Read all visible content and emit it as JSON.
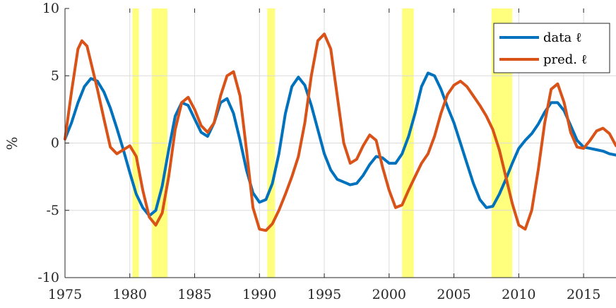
{
  "chart_data": {
    "type": "line",
    "title": "",
    "xlabel": "",
    "ylabel": "%",
    "xlim": [
      1975,
      2017.5
    ],
    "ylim": [
      -10,
      10
    ],
    "grid": true,
    "legend_position": "top-right",
    "x_ticks": [
      1975,
      1980,
      1985,
      1990,
      1995,
      2000,
      2005,
      2010,
      2015
    ],
    "x_tick_labels": [
      "1975",
      "1980",
      "1985",
      "1990",
      "1995",
      "2000",
      "2005",
      "2010",
      "2015"
    ],
    "y_ticks": [
      -10,
      -5,
      0,
      5,
      10
    ],
    "y_tick_labels": [
      "-10",
      "-5",
      "0",
      "5",
      "10"
    ],
    "shaded_periods": [
      [
        1980.2,
        1980.7
      ],
      [
        1981.7,
        1982.9
      ],
      [
        1990.6,
        1991.2
      ],
      [
        2001.0,
        2001.9
      ],
      [
        2007.9,
        2009.5
      ]
    ],
    "shade_color": "#ffff66",
    "series": [
      {
        "name": "data ℓ",
        "color": "#0072bd",
        "points": [
          [
            1975,
            0.3
          ],
          [
            1975.5,
            1.5
          ],
          [
            1976,
            3.0
          ],
          [
            1976.5,
            4.2
          ],
          [
            1977,
            4.8
          ],
          [
            1977.5,
            4.6
          ],
          [
            1978,
            3.8
          ],
          [
            1978.5,
            2.6
          ],
          [
            1979,
            1.1
          ],
          [
            1979.5,
            -0.5
          ],
          [
            1980,
            -2.2
          ],
          [
            1980.5,
            -3.8
          ],
          [
            1981,
            -4.8
          ],
          [
            1981.5,
            -5.4
          ],
          [
            1982,
            -5.0
          ],
          [
            1982.5,
            -3.2
          ],
          [
            1983,
            -0.5
          ],
          [
            1983.5,
            2.0
          ],
          [
            1984,
            3.0
          ],
          [
            1984.5,
            2.8
          ],
          [
            1985,
            1.8
          ],
          [
            1985.5,
            0.8
          ],
          [
            1986,
            0.5
          ],
          [
            1986.5,
            1.5
          ],
          [
            1987,
            3.0
          ],
          [
            1987.5,
            3.3
          ],
          [
            1988,
            2.2
          ],
          [
            1988.5,
            0.2
          ],
          [
            1989,
            -2.0
          ],
          [
            1989.5,
            -3.7
          ],
          [
            1990,
            -4.4
          ],
          [
            1990.5,
            -4.2
          ],
          [
            1991,
            -3.0
          ],
          [
            1991.5,
            -0.8
          ],
          [
            1992,
            2.2
          ],
          [
            1992.5,
            4.2
          ],
          [
            1993,
            4.9
          ],
          [
            1993.5,
            4.3
          ],
          [
            1994,
            2.8
          ],
          [
            1994.5,
            1.0
          ],
          [
            1995,
            -0.8
          ],
          [
            1995.5,
            -2.0
          ],
          [
            1996,
            -2.7
          ],
          [
            1996.5,
            -2.9
          ],
          [
            1997,
            -3.1
          ],
          [
            1997.5,
            -3.0
          ],
          [
            1998,
            -2.4
          ],
          [
            1998.5,
            -1.6
          ],
          [
            1999,
            -1.0
          ],
          [
            1999.5,
            -1.1
          ],
          [
            2000,
            -1.5
          ],
          [
            2000.5,
            -1.5
          ],
          [
            2001,
            -0.8
          ],
          [
            2001.5,
            0.5
          ],
          [
            2002,
            2.2
          ],
          [
            2002.5,
            4.2
          ],
          [
            2003,
            5.2
          ],
          [
            2003.5,
            5.0
          ],
          [
            2004,
            4.0
          ],
          [
            2004.5,
            2.7
          ],
          [
            2005,
            1.5
          ],
          [
            2005.5,
            0.0
          ],
          [
            2006,
            -1.5
          ],
          [
            2006.5,
            -3.0
          ],
          [
            2007,
            -4.2
          ],
          [
            2007.5,
            -4.8
          ],
          [
            2008,
            -4.7
          ],
          [
            2008.5,
            -3.8
          ],
          [
            2009,
            -2.7
          ],
          [
            2009.5,
            -1.5
          ],
          [
            2010,
            -0.4
          ],
          [
            2010.5,
            0.2
          ],
          [
            2011,
            0.7
          ],
          [
            2011.5,
            1.4
          ],
          [
            2012,
            2.3
          ],
          [
            2012.5,
            3.0
          ],
          [
            2013,
            3.0
          ],
          [
            2013.5,
            2.4
          ],
          [
            2014,
            1.3
          ],
          [
            2014.5,
            0.2
          ],
          [
            2015,
            -0.3
          ],
          [
            2015.5,
            -0.4
          ],
          [
            2016,
            -0.5
          ],
          [
            2016.5,
            -0.6
          ],
          [
            2017,
            -0.8
          ],
          [
            2017.5,
            -0.9
          ]
        ]
      },
      {
        "name": "pred. ℓ",
        "color": "#d95319",
        "points": [
          [
            1975,
            0.3
          ],
          [
            1975.5,
            3.8
          ],
          [
            1976,
            7.0
          ],
          [
            1976.3,
            7.6
          ],
          [
            1976.7,
            7.2
          ],
          [
            1977,
            6.0
          ],
          [
            1977.5,
            4.0
          ],
          [
            1978,
            1.8
          ],
          [
            1978.5,
            -0.3
          ],
          [
            1979,
            -0.8
          ],
          [
            1979.5,
            -0.5
          ],
          [
            1980,
            -0.2
          ],
          [
            1980.5,
            -1.0
          ],
          [
            1981,
            -3.5
          ],
          [
            1981.5,
            -5.5
          ],
          [
            1982,
            -6.1
          ],
          [
            1982.5,
            -5.2
          ],
          [
            1983,
            -2.5
          ],
          [
            1983.5,
            1.0
          ],
          [
            1984,
            3.0
          ],
          [
            1984.5,
            3.4
          ],
          [
            1985,
            2.5
          ],
          [
            1985.5,
            1.3
          ],
          [
            1986,
            0.8
          ],
          [
            1986.5,
            1.5
          ],
          [
            1987,
            3.5
          ],
          [
            1987.5,
            5.0
          ],
          [
            1988,
            5.3
          ],
          [
            1988.5,
            3.5
          ],
          [
            1989,
            -0.5
          ],
          [
            1989.5,
            -4.8
          ],
          [
            1990,
            -6.4
          ],
          [
            1990.5,
            -6.5
          ],
          [
            1991,
            -6.0
          ],
          [
            1991.5,
            -5.0
          ],
          [
            1992,
            -3.8
          ],
          [
            1992.5,
            -2.5
          ],
          [
            1993,
            -1.0
          ],
          [
            1993.5,
            1.5
          ],
          [
            1994,
            5.0
          ],
          [
            1994.5,
            7.6
          ],
          [
            1995,
            8.1
          ],
          [
            1995.5,
            7.0
          ],
          [
            1996,
            3.5
          ],
          [
            1996.5,
            0.0
          ],
          [
            1997,
            -1.5
          ],
          [
            1997.5,
            -1.2
          ],
          [
            1998,
            -0.2
          ],
          [
            1998.5,
            0.6
          ],
          [
            1999,
            0.2
          ],
          [
            1999.5,
            -1.8
          ],
          [
            2000,
            -3.5
          ],
          [
            2000.5,
            -4.8
          ],
          [
            2001,
            -4.6
          ],
          [
            2001.5,
            -3.5
          ],
          [
            2002,
            -2.5
          ],
          [
            2002.5,
            -1.5
          ],
          [
            2003,
            -0.8
          ],
          [
            2003.5,
            0.5
          ],
          [
            2004,
            2.2
          ],
          [
            2004.5,
            3.6
          ],
          [
            2005,
            4.3
          ],
          [
            2005.5,
            4.6
          ],
          [
            2006,
            4.2
          ],
          [
            2006.5,
            3.5
          ],
          [
            2007,
            2.8
          ],
          [
            2007.5,
            2.0
          ],
          [
            2008,
            1.0
          ],
          [
            2008.5,
            -0.5
          ],
          [
            2009,
            -2.5
          ],
          [
            2009.5,
            -4.5
          ],
          [
            2010,
            -6.1
          ],
          [
            2010.5,
            -6.4
          ],
          [
            2011,
            -5.0
          ],
          [
            2011.5,
            -2.0
          ],
          [
            2012,
            1.5
          ],
          [
            2012.5,
            4.0
          ],
          [
            2013,
            4.4
          ],
          [
            2013.5,
            3.0
          ],
          [
            2014,
            0.8
          ],
          [
            2014.5,
            -0.3
          ],
          [
            2015,
            -0.4
          ],
          [
            2015.5,
            0.2
          ],
          [
            2016,
            0.9
          ],
          [
            2016.5,
            1.1
          ],
          [
            2017,
            0.7
          ],
          [
            2017.5,
            -0.2
          ]
        ]
      }
    ]
  }
}
